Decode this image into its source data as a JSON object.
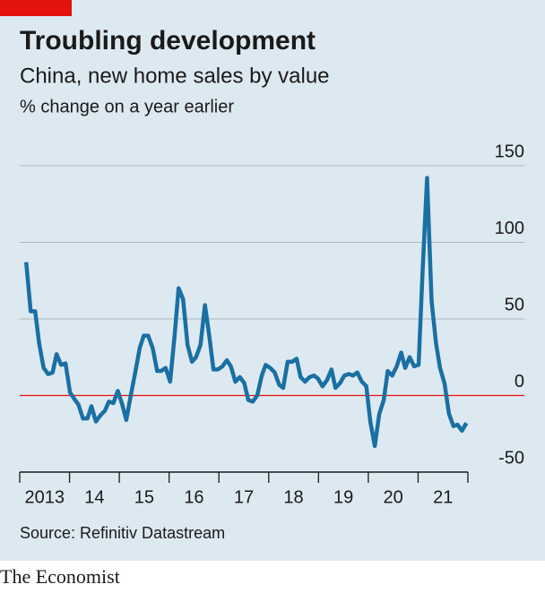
{
  "chart_data": {
    "type": "line",
    "title": "Troubling development",
    "subtitle": "China, new home sales by value",
    "y_label": "% change on a year earlier",
    "source": "Source: Refinitiv Datastream",
    "brand": "The Economist",
    "xlim": [
      2013,
      2022
    ],
    "xticks": [
      {
        "value": 2013,
        "label": "2013"
      },
      {
        "value": 2014,
        "label": "14"
      },
      {
        "value": 2015,
        "label": "15"
      },
      {
        "value": 2016,
        "label": "16"
      },
      {
        "value": 2017,
        "label": "17"
      },
      {
        "value": 2018,
        "label": "18"
      },
      {
        "value": 2019,
        "label": "19"
      },
      {
        "value": 2020,
        "label": "20"
      },
      {
        "value": 2021,
        "label": "21"
      },
      {
        "value": 2022,
        "label": null
      }
    ],
    "ylim": [
      -50,
      150
    ],
    "yticks": [
      -50,
      0,
      50,
      100,
      150
    ],
    "grid": true,
    "zero_line_color": "#e3120b",
    "x": [
      2013.13,
      2013.22,
      2013.31,
      2013.39,
      2013.48,
      2013.57,
      2013.66,
      2013.74,
      2013.83,
      2013.92,
      2014.01,
      2014.09,
      2014.18,
      2014.27,
      2014.36,
      2014.44,
      2014.53,
      2014.62,
      2014.71,
      2014.79,
      2014.88,
      2014.97,
      2015.06,
      2015.14,
      2015.23,
      2015.32,
      2015.41,
      2015.49,
      2015.58,
      2015.67,
      2015.76,
      2015.84,
      2015.93,
      2016.02,
      2016.11,
      2016.19,
      2016.28,
      2016.37,
      2016.46,
      2016.54,
      2016.63,
      2016.72,
      2016.81,
      2016.89,
      2016.98,
      2017.07,
      2017.16,
      2017.24,
      2017.33,
      2017.42,
      2017.51,
      2017.59,
      2017.68,
      2017.77,
      2017.86,
      2017.94,
      2018.03,
      2018.12,
      2018.21,
      2018.29,
      2018.38,
      2018.47,
      2018.56,
      2018.64,
      2018.73,
      2018.82,
      2018.91,
      2018.99,
      2019.08,
      2019.17,
      2019.26,
      2019.34,
      2019.43,
      2019.52,
      2019.61,
      2019.69,
      2019.78,
      2019.87,
      2019.96,
      2020.04,
      2020.13,
      2020.22,
      2020.31,
      2020.39,
      2020.48,
      2020.57,
      2020.66,
      2020.74,
      2020.83,
      2020.92,
      2021.01,
      2021.09,
      2021.18,
      2021.27,
      2021.36,
      2021.44,
      2021.53,
      2021.62,
      2021.71,
      2021.79,
      2021.88,
      2021.97
    ],
    "series": [
      {
        "color": "#1a6fa3",
        "values": [
          87,
          55,
          55,
          34,
          18,
          14,
          15,
          27,
          20,
          21,
          2,
          -2,
          -6,
          -15,
          -15,
          -7,
          -17,
          -13,
          -10,
          -4,
          -5,
          3,
          -6,
          -16,
          0,
          15,
          31,
          39,
          39,
          31,
          16,
          16,
          18,
          9,
          39,
          70,
          63,
          33,
          22,
          25,
          33,
          59,
          38,
          17,
          17,
          19,
          23,
          19,
          9,
          12,
          8,
          -3,
          -4,
          0,
          13,
          20,
          18,
          15,
          7,
          5,
          22,
          22,
          24,
          12,
          9,
          12,
          13,
          11,
          6,
          10,
          17,
          5,
          8,
          13,
          14,
          13,
          15,
          9,
          6,
          -17,
          -33,
          -12,
          -3,
          16,
          13,
          19,
          28,
          18,
          25,
          19,
          20,
          81,
          142,
          62,
          34,
          18,
          8,
          -12,
          -20,
          -19,
          -23,
          -18
        ]
      }
    ]
  }
}
